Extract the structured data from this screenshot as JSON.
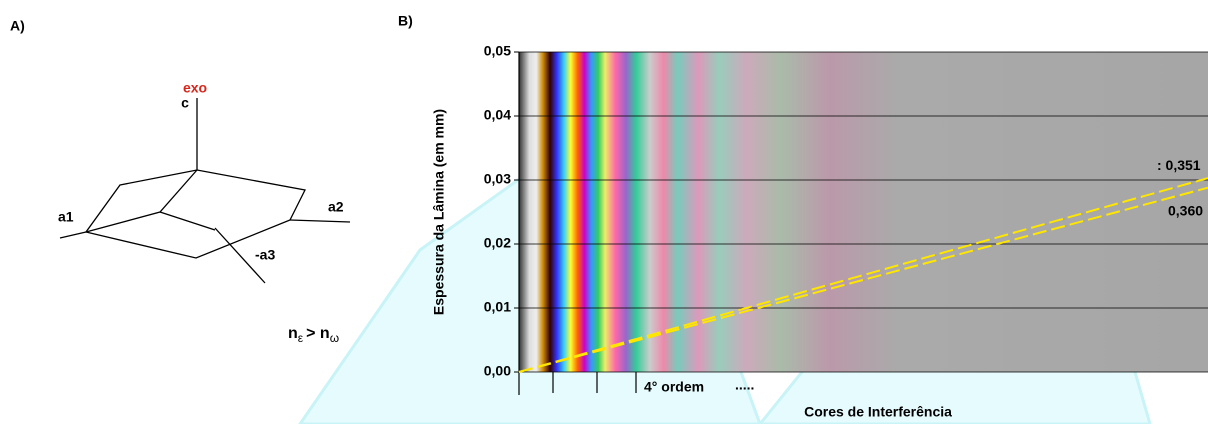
{
  "panel_a": {
    "label": "A)",
    "exo": "exo",
    "axes": [
      "c",
      "a1",
      "a2",
      "-a3"
    ],
    "relation": {
      "n1": "n",
      "sub1": "ε",
      "op": "> n",
      "sub2": "ω"
    }
  },
  "chart_data": {
    "type": "line",
    "panel_label": "B)",
    "ylabel": "Espessura da Lâmina (em mm)",
    "xlabel": "Cores de Interferência",
    "annotations": [
      "4° ordem",
      "....."
    ],
    "categories": [
      null,
      null
    ],
    "ylim": [
      0,
      0.05
    ],
    "yticks": [
      {
        "value": 0,
        "label": "0,00"
      },
      {
        "value": 0.01,
        "label": "0,01"
      },
      {
        "value": 0.02,
        "label": "0,02"
      },
      {
        "value": 0.03,
        "label": "0,03"
      },
      {
        "value": 0.04,
        "label": "0,04"
      },
      {
        "value": 0.05,
        "label": "0,05"
      }
    ],
    "grid": true,
    "series": [
      {
        "name": ": 0,351",
        "color": "#ffe600",
        "values": [
          0,
          0.0303
        ]
      },
      {
        "name": "0,360",
        "color": "#ffe600",
        "values": [
          0,
          0.0288
        ]
      }
    ]
  }
}
